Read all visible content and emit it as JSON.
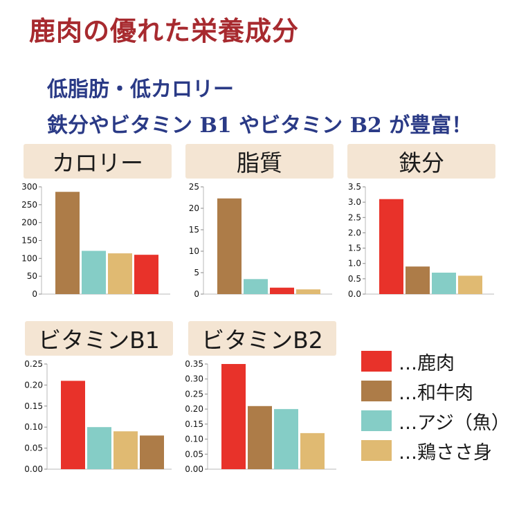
{
  "title": "鹿肉の優れた栄養成分",
  "subtitle_line1": "低脂肪・低カロリー",
  "subtitle_line2": "鉄分やビタミン B1 やビタミン B2 が豊富！",
  "colors": {
    "venison": "#e8322a",
    "wagyu": "#ad7c48",
    "aji": "#85cdc6",
    "chicken": "#e0ba72"
  },
  "legend": [
    {
      "label": "…鹿肉",
      "color": "#e8322a"
    },
    {
      "label": "…和牛肉",
      "color": "#ad7c48"
    },
    {
      "label": "…アジ（魚）",
      "color": "#85cdc6"
    },
    {
      "label": "…鶏ささ身",
      "color": "#e0ba72"
    }
  ],
  "chart_data": [
    {
      "type": "bar",
      "title": "カロリー",
      "categories": [
        "和牛肉",
        "アジ（魚）",
        "鶏ささ身",
        "鹿肉"
      ],
      "values": [
        286,
        121,
        114,
        110
      ],
      "colors": [
        "#ad7c48",
        "#85cdc6",
        "#e0ba72",
        "#e8322a"
      ],
      "ylim": [
        0,
        300
      ],
      "yticks": [
        "0",
        "50",
        "100",
        "150",
        "200",
        "250",
        "300"
      ]
    },
    {
      "type": "bar",
      "title": "脂質",
      "categories": [
        "和牛肉",
        "アジ（魚）",
        "鹿肉",
        "鶏ささ身"
      ],
      "values": [
        22.3,
        3.5,
        1.5,
        1.1
      ],
      "colors": [
        "#ad7c48",
        "#85cdc6",
        "#e8322a",
        "#e0ba72"
      ],
      "ylim": [
        0,
        25
      ],
      "yticks": [
        "0",
        "5",
        "10",
        "15",
        "20",
        "25"
      ]
    },
    {
      "type": "bar",
      "title": "鉄分",
      "categories": [
        "鹿肉",
        "和牛肉",
        "アジ（魚）",
        "鶏ささ身"
      ],
      "values": [
        3.1,
        0.9,
        0.7,
        0.6
      ],
      "colors": [
        "#e8322a",
        "#ad7c48",
        "#85cdc6",
        "#e0ba72"
      ],
      "ylim": [
        0,
        3.5
      ],
      "yticks": [
        "0.0",
        "0.5",
        "1.0",
        "1.5",
        "2.0",
        "2.5",
        "3.0",
        "3.5"
      ]
    },
    {
      "type": "bar",
      "title": "ビタミンB1",
      "categories": [
        "鹿肉",
        "アジ（魚）",
        "鶏ささ身",
        "和牛肉"
      ],
      "values": [
        0.21,
        0.1,
        0.09,
        0.08
      ],
      "colors": [
        "#e8322a",
        "#85cdc6",
        "#e0ba72",
        "#ad7c48"
      ],
      "ylim": [
        0,
        0.25
      ],
      "yticks": [
        "0.00",
        "0.05",
        "0.10",
        "0.15",
        "0.20",
        "0.25"
      ]
    },
    {
      "type": "bar",
      "title": "ビタミンB2",
      "categories": [
        "鹿肉",
        "和牛肉",
        "アジ（魚）",
        "鶏ささ身"
      ],
      "values": [
        0.35,
        0.21,
        0.2,
        0.12
      ],
      "colors": [
        "#e8322a",
        "#ad7c48",
        "#85cdc6",
        "#e0ba72"
      ],
      "ylim": [
        0,
        0.35
      ],
      "yticks": [
        "0.00",
        "0.05",
        "0.10",
        "0.15",
        "0.20",
        "0.25",
        "0.30",
        "0.35"
      ]
    }
  ]
}
